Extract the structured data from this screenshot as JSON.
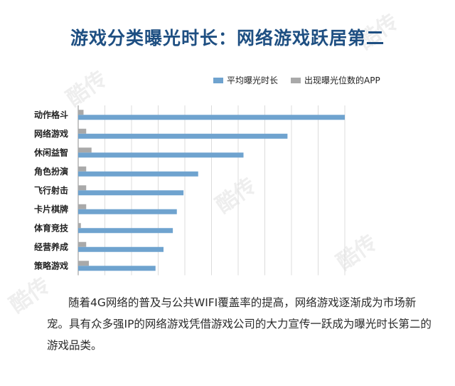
{
  "title": "游戏分类曝光时长：网络游戏跃居第二",
  "legend": {
    "series_1": "平均曝光时长",
    "series_2": "出现曝光位数的APP"
  },
  "colors": {
    "series_1": "#6fa3cf",
    "series_2": "#a9a9a9",
    "title": "#1e4f82"
  },
  "chart_data": {
    "type": "bar",
    "orientation": "horizontal",
    "categories": [
      "动作格斗",
      "网络游戏",
      "休闲益智",
      "角色扮演",
      "飞行射击",
      "卡片棋牌",
      "体育竞技",
      "经营养成",
      "策略游戏"
    ],
    "series": [
      {
        "name": "平均曝光时长",
        "values": [
          100,
          78.5,
          62,
          45,
          39.5,
          37,
          35.5,
          32,
          29
        ]
      },
      {
        "name": "出现曝光位数的APP",
        "values": [
          2,
          3,
          5,
          3,
          3,
          3,
          1,
          3,
          4
        ]
      }
    ],
    "xlim": [
      0,
      110
    ],
    "grid": true,
    "legend_position": "top-right"
  },
  "description": "随着4G网络的普及与公共WIFI覆盖率的提高，网络游戏逐渐成为市场新宠。具有众多强IP的网络游戏凭借游戏公司的大力宣传一跃成为曝光时长第二的游戏品类。",
  "watermark": "酷传"
}
